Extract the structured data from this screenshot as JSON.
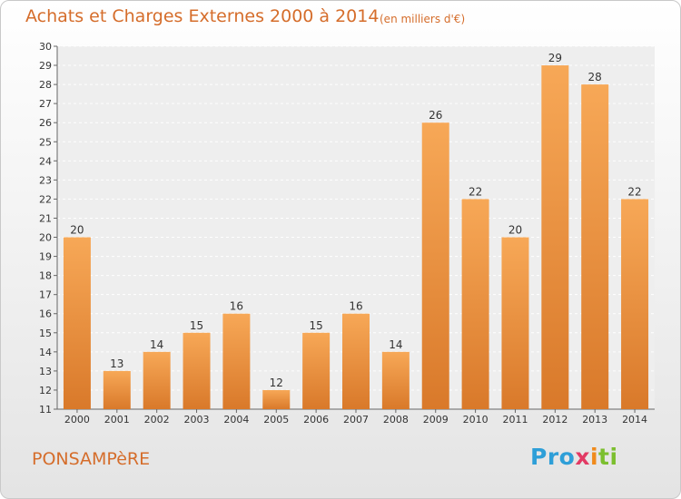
{
  "title": "Achats et Charges Externes 2000 à 2014",
  "subtitle": "(en milliers d'€)",
  "commune": "PONSAMPèRE",
  "logo": {
    "p1": "Pro",
    "p2": "x",
    "p3": "i",
    "p4": "ti"
  },
  "colors": {
    "title": "#d56d2b",
    "bar_light": "#f7a857",
    "bar_dark": "#d9792a"
  },
  "chart_data": {
    "type": "bar",
    "title": "Achats et Charges Externes 2000 à 2014",
    "subtitle": "(en milliers d'€)",
    "categories": [
      "2000",
      "2001",
      "2002",
      "2003",
      "2004",
      "2005",
      "2006",
      "2007",
      "2008",
      "2009",
      "2010",
      "2011",
      "2012",
      "2013",
      "2014"
    ],
    "values": [
      20,
      13,
      14,
      15,
      16,
      12,
      15,
      16,
      14,
      26,
      22,
      20,
      29,
      28,
      22
    ],
    "ylim": [
      11,
      30
    ],
    "yticks": [
      11,
      12,
      13,
      14,
      15,
      16,
      17,
      18,
      19,
      20,
      21,
      22,
      23,
      24,
      25,
      26,
      27,
      28,
      29,
      30
    ],
    "grid": true,
    "xlabel": "",
    "ylabel": ""
  }
}
